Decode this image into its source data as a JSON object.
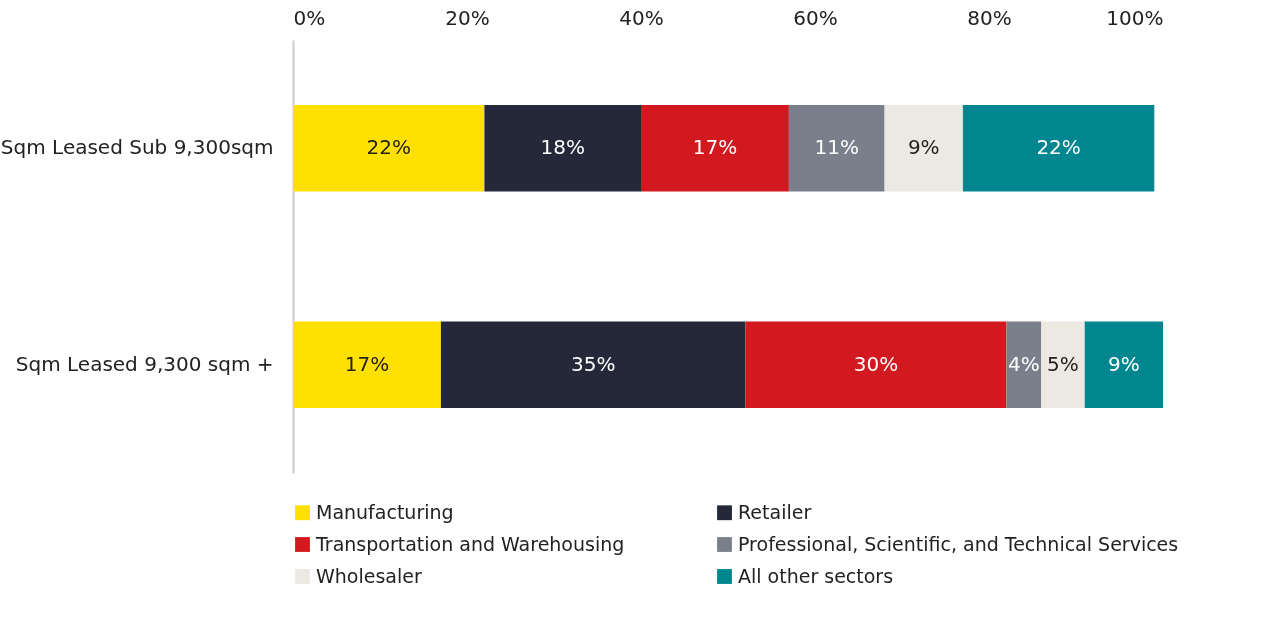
{
  "chart_data": {
    "type": "bar",
    "orientation": "horizontal",
    "stacked": true,
    "data_labels": false,
    "categories": [
      "Sqm Leased Sub 9,300sqm",
      "Sqm Leased 9,300 sqm +"
    ],
    "series": [
      {
        "name": "Manufacturing",
        "color": "#ffe000",
        "values": [
          22,
          17
        ],
        "value_labels": [
          "22%",
          "17%"
        ]
      },
      {
        "name": "Retailer",
        "color": "#252839",
        "values": [
          18,
          35
        ],
        "value_labels": [
          "18%",
          "35%"
        ]
      },
      {
        "name": "Transportation and Warehousing",
        "color": "#d2191f",
        "values": [
          17,
          30
        ],
        "value_labels": [
          "17%",
          "30%"
        ]
      },
      {
        "name": "Professional, Scientific, and Technical Services",
        "color": "#7a808b",
        "values": [
          11,
          4
        ],
        "value_labels": [
          "11%",
          "4%"
        ]
      },
      {
        "name": "Wholesaler",
        "color": "#ece8e2",
        "values": [
          9,
          5
        ],
        "value_labels": [
          "9%",
          "5%"
        ]
      },
      {
        "name": "All other sectors",
        "color": "#00868f",
        "values": [
          22,
          9
        ],
        "value_labels": [
          "22%",
          "9%"
        ]
      }
    ],
    "xlim": [
      0,
      100
    ],
    "xticks": [
      {
        "value": 0,
        "label": "0%"
      },
      {
        "value": 20,
        "label": "20%"
      },
      {
        "value": 40,
        "label": "40%"
      },
      {
        "value": 60,
        "label": "60%"
      },
      {
        "value": 80,
        "label": "80%"
      },
      {
        "value": 100,
        "label": "100%"
      }
    ],
    "grid": false,
    "legend": "bottom"
  }
}
